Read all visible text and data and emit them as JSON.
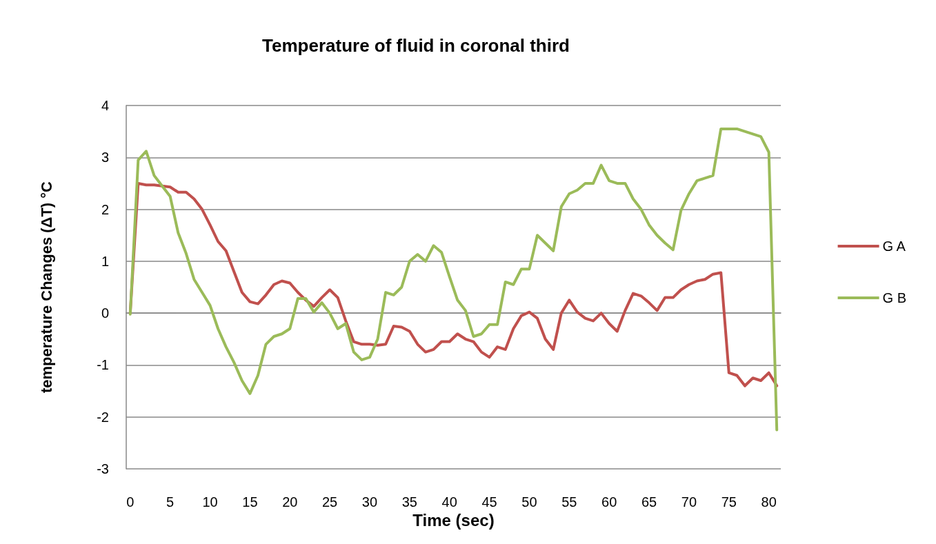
{
  "chart_data": {
    "type": "line",
    "title": "Temperature of fluid in coronal third",
    "xlabel": "Time (sec)",
    "ylabel": "temperature Changes (ΔT) °C",
    "categories": [
      "0",
      null,
      null,
      null,
      null,
      "5",
      null,
      null,
      null,
      null,
      "10",
      null,
      null,
      null,
      null,
      "15",
      null,
      null,
      null,
      null,
      "20",
      null,
      null,
      null,
      null,
      "25",
      null,
      null,
      null,
      null,
      "30",
      null,
      null,
      null,
      null,
      "35",
      null,
      null,
      null,
      null,
      "40",
      null,
      null,
      null,
      null,
      "45",
      null,
      null,
      null,
      null,
      "50",
      null,
      null,
      null,
      null,
      "55",
      null,
      null,
      null,
      null,
      "60",
      null,
      null,
      null,
      null,
      "65",
      null,
      null,
      null,
      null,
      "70",
      null,
      null,
      null,
      null,
      "75",
      null,
      null,
      null,
      null,
      "80",
      null
    ],
    "series": [
      {
        "name": "G A",
        "color": "#c0504d",
        "values": [
          0,
          2.5,
          2.47,
          2.47,
          2.45,
          2.43,
          2.33,
          2.33,
          2.2,
          2.0,
          1.7,
          1.38,
          1.2,
          0.8,
          0.4,
          0.22,
          0.18,
          0.35,
          0.55,
          0.62,
          0.58,
          0.4,
          0.25,
          0.13,
          0.3,
          0.45,
          0.3,
          -0.15,
          -0.55,
          -0.6,
          -0.6,
          -0.62,
          -0.6,
          -0.25,
          -0.27,
          -0.35,
          -0.6,
          -0.75,
          -0.7,
          -0.55,
          -0.55,
          -0.4,
          -0.5,
          -0.55,
          -0.75,
          -0.85,
          -0.65,
          -0.7,
          -0.3,
          -0.05,
          0.02,
          -0.1,
          -0.5,
          -0.7,
          0.0,
          0.25,
          0.02,
          -0.1,
          -0.15,
          0.0,
          -0.2,
          -0.35,
          0.05,
          0.38,
          0.33,
          0.2,
          0.05,
          0.3,
          0.3,
          0.45,
          0.55,
          0.62,
          0.65,
          0.75,
          0.78,
          -1.15,
          -1.2,
          -1.4,
          -1.25,
          -1.3,
          -1.15,
          -1.4
        ]
      },
      {
        "name": "G B",
        "color": "#9bbb59",
        "values": [
          -0.02,
          2.95,
          3.12,
          2.65,
          2.45,
          2.25,
          1.55,
          1.15,
          0.65,
          0.4,
          0.15,
          -0.3,
          -0.65,
          -0.95,
          -1.3,
          -1.55,
          -1.2,
          -0.6,
          -0.45,
          -0.4,
          -0.3,
          0.28,
          0.28,
          0.02,
          0.2,
          0.0,
          -0.3,
          -0.2,
          -0.75,
          -0.9,
          -0.85,
          -0.5,
          0.4,
          0.35,
          0.5,
          1.0,
          1.13,
          1.0,
          1.3,
          1.17,
          0.7,
          0.25,
          0.05,
          -0.45,
          -0.4,
          -0.22,
          -0.22,
          0.6,
          0.55,
          0.85,
          0.85,
          1.5,
          1.35,
          1.2,
          2.05,
          2.3,
          2.37,
          2.5,
          2.5,
          2.85,
          2.55,
          2.5,
          2.5,
          2.2,
          2.0,
          1.7,
          1.5,
          1.35,
          1.22,
          1.98,
          2.3,
          2.55,
          2.6,
          2.65,
          3.55,
          3.55,
          3.55,
          3.5,
          3.45,
          3.4,
          3.1,
          -2.25
        ]
      }
    ],
    "ylim": [
      -3,
      4
    ],
    "yticks": [
      -3,
      -2,
      -1,
      0,
      1,
      2,
      3,
      4
    ],
    "grid": "y",
    "legend": "right",
    "marker": "none",
    "line_style": "solid"
  }
}
